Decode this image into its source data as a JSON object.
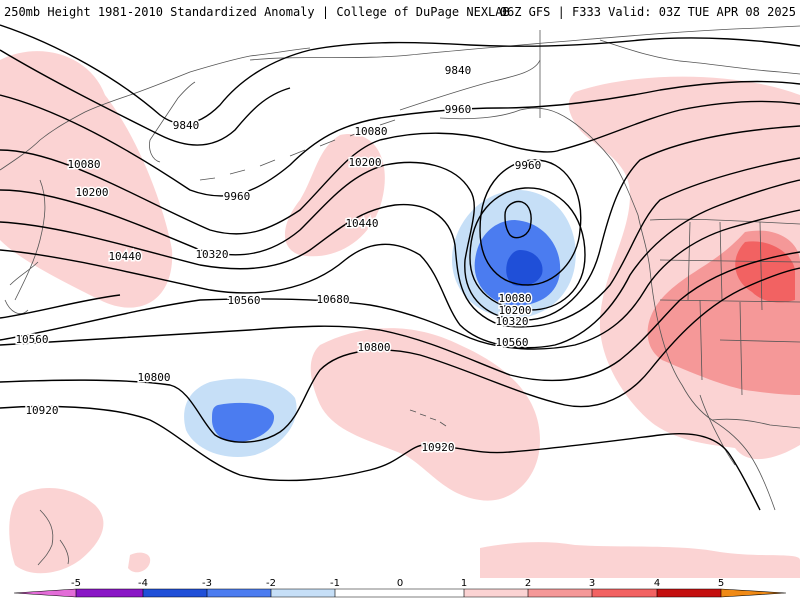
{
  "header": {
    "left_title": "250mb Height 1981-2010 Standardized Anomaly | College of DuPage NEXLAB",
    "right_title": "06Z GFS | F333 Valid: 03Z TUE APR 08 2025"
  },
  "colors": {
    "anomaly_neg5": "#e36cd8",
    "anomaly_neg4": "#8a16c6",
    "anomaly_neg3": "#1f4fd8",
    "anomaly_neg2": "#4b7cf0",
    "anomaly_neg1": "#c6dff7",
    "anomaly_pos1": "#fbd3d3",
    "anomaly_pos2": "#f59898",
    "anomaly_pos3": "#f26262",
    "anomaly_pos4": "#c40f0f",
    "anomaly_pos5": "#f08a16",
    "contour": "#000000",
    "coastline": "#444444",
    "borders": "#666666"
  },
  "contours": [
    {
      "label": "9840"
    },
    {
      "label": "9840"
    },
    {
      "label": "9960"
    },
    {
      "label": "9960"
    },
    {
      "label": "9960"
    },
    {
      "label": "10080"
    },
    {
      "label": "10080"
    },
    {
      "label": "10080"
    },
    {
      "label": "10200"
    },
    {
      "label": "10200"
    },
    {
      "label": "10200"
    },
    {
      "label": "10320"
    },
    {
      "label": "10320"
    },
    {
      "label": "10440"
    },
    {
      "label": "10440"
    },
    {
      "label": "10560"
    },
    {
      "label": "10560"
    },
    {
      "label": "10560"
    },
    {
      "label": "10680"
    },
    {
      "label": "10800"
    },
    {
      "label": "10800"
    },
    {
      "label": "10920"
    },
    {
      "label": "10920"
    }
  ],
  "colorbar": {
    "labels": [
      "-5",
      "-4",
      "-3",
      "-2",
      "-1",
      "0",
      "1",
      "2",
      "3",
      "4",
      "5"
    ]
  }
}
